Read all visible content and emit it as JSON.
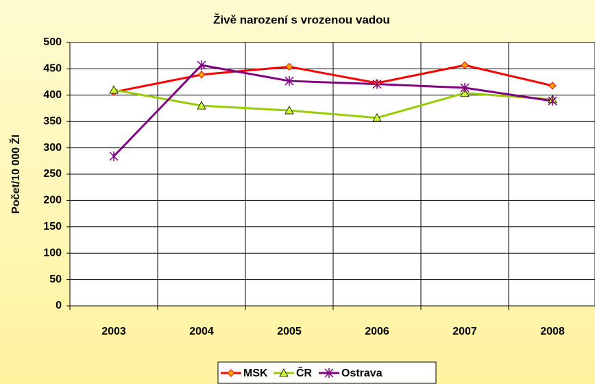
{
  "chart_data": {
    "type": "line",
    "title": "Živě narození s vrozenou vadou",
    "y_label": "Počet/10 000 ŽI",
    "categories": [
      "2003",
      "2004",
      "2005",
      "2006",
      "2007",
      "2008"
    ],
    "series": [
      {
        "name": "MSK",
        "color": "#ff0000",
        "marker": "diamond",
        "marker_color": "#ffa500",
        "values": [
          406,
          439,
          454,
          423,
          457,
          418
        ]
      },
      {
        "name": "ČR",
        "color": "#99cc00",
        "marker": "triangle",
        "marker_color": "#ccff33",
        "values": [
          410,
          380,
          371,
          357,
          404,
          392
        ]
      },
      {
        "name": "Ostrava",
        "color": "#800080",
        "marker": "asterisk",
        "marker_color": "#800080",
        "values": [
          284,
          457,
          427,
          421,
          414,
          389
        ]
      }
    ],
    "ylim": [
      0,
      500
    ],
    "yticks": [
      0,
      50,
      100,
      150,
      200,
      250,
      300,
      350,
      400,
      450,
      500
    ],
    "grid": true,
    "legend": "bottom"
  }
}
